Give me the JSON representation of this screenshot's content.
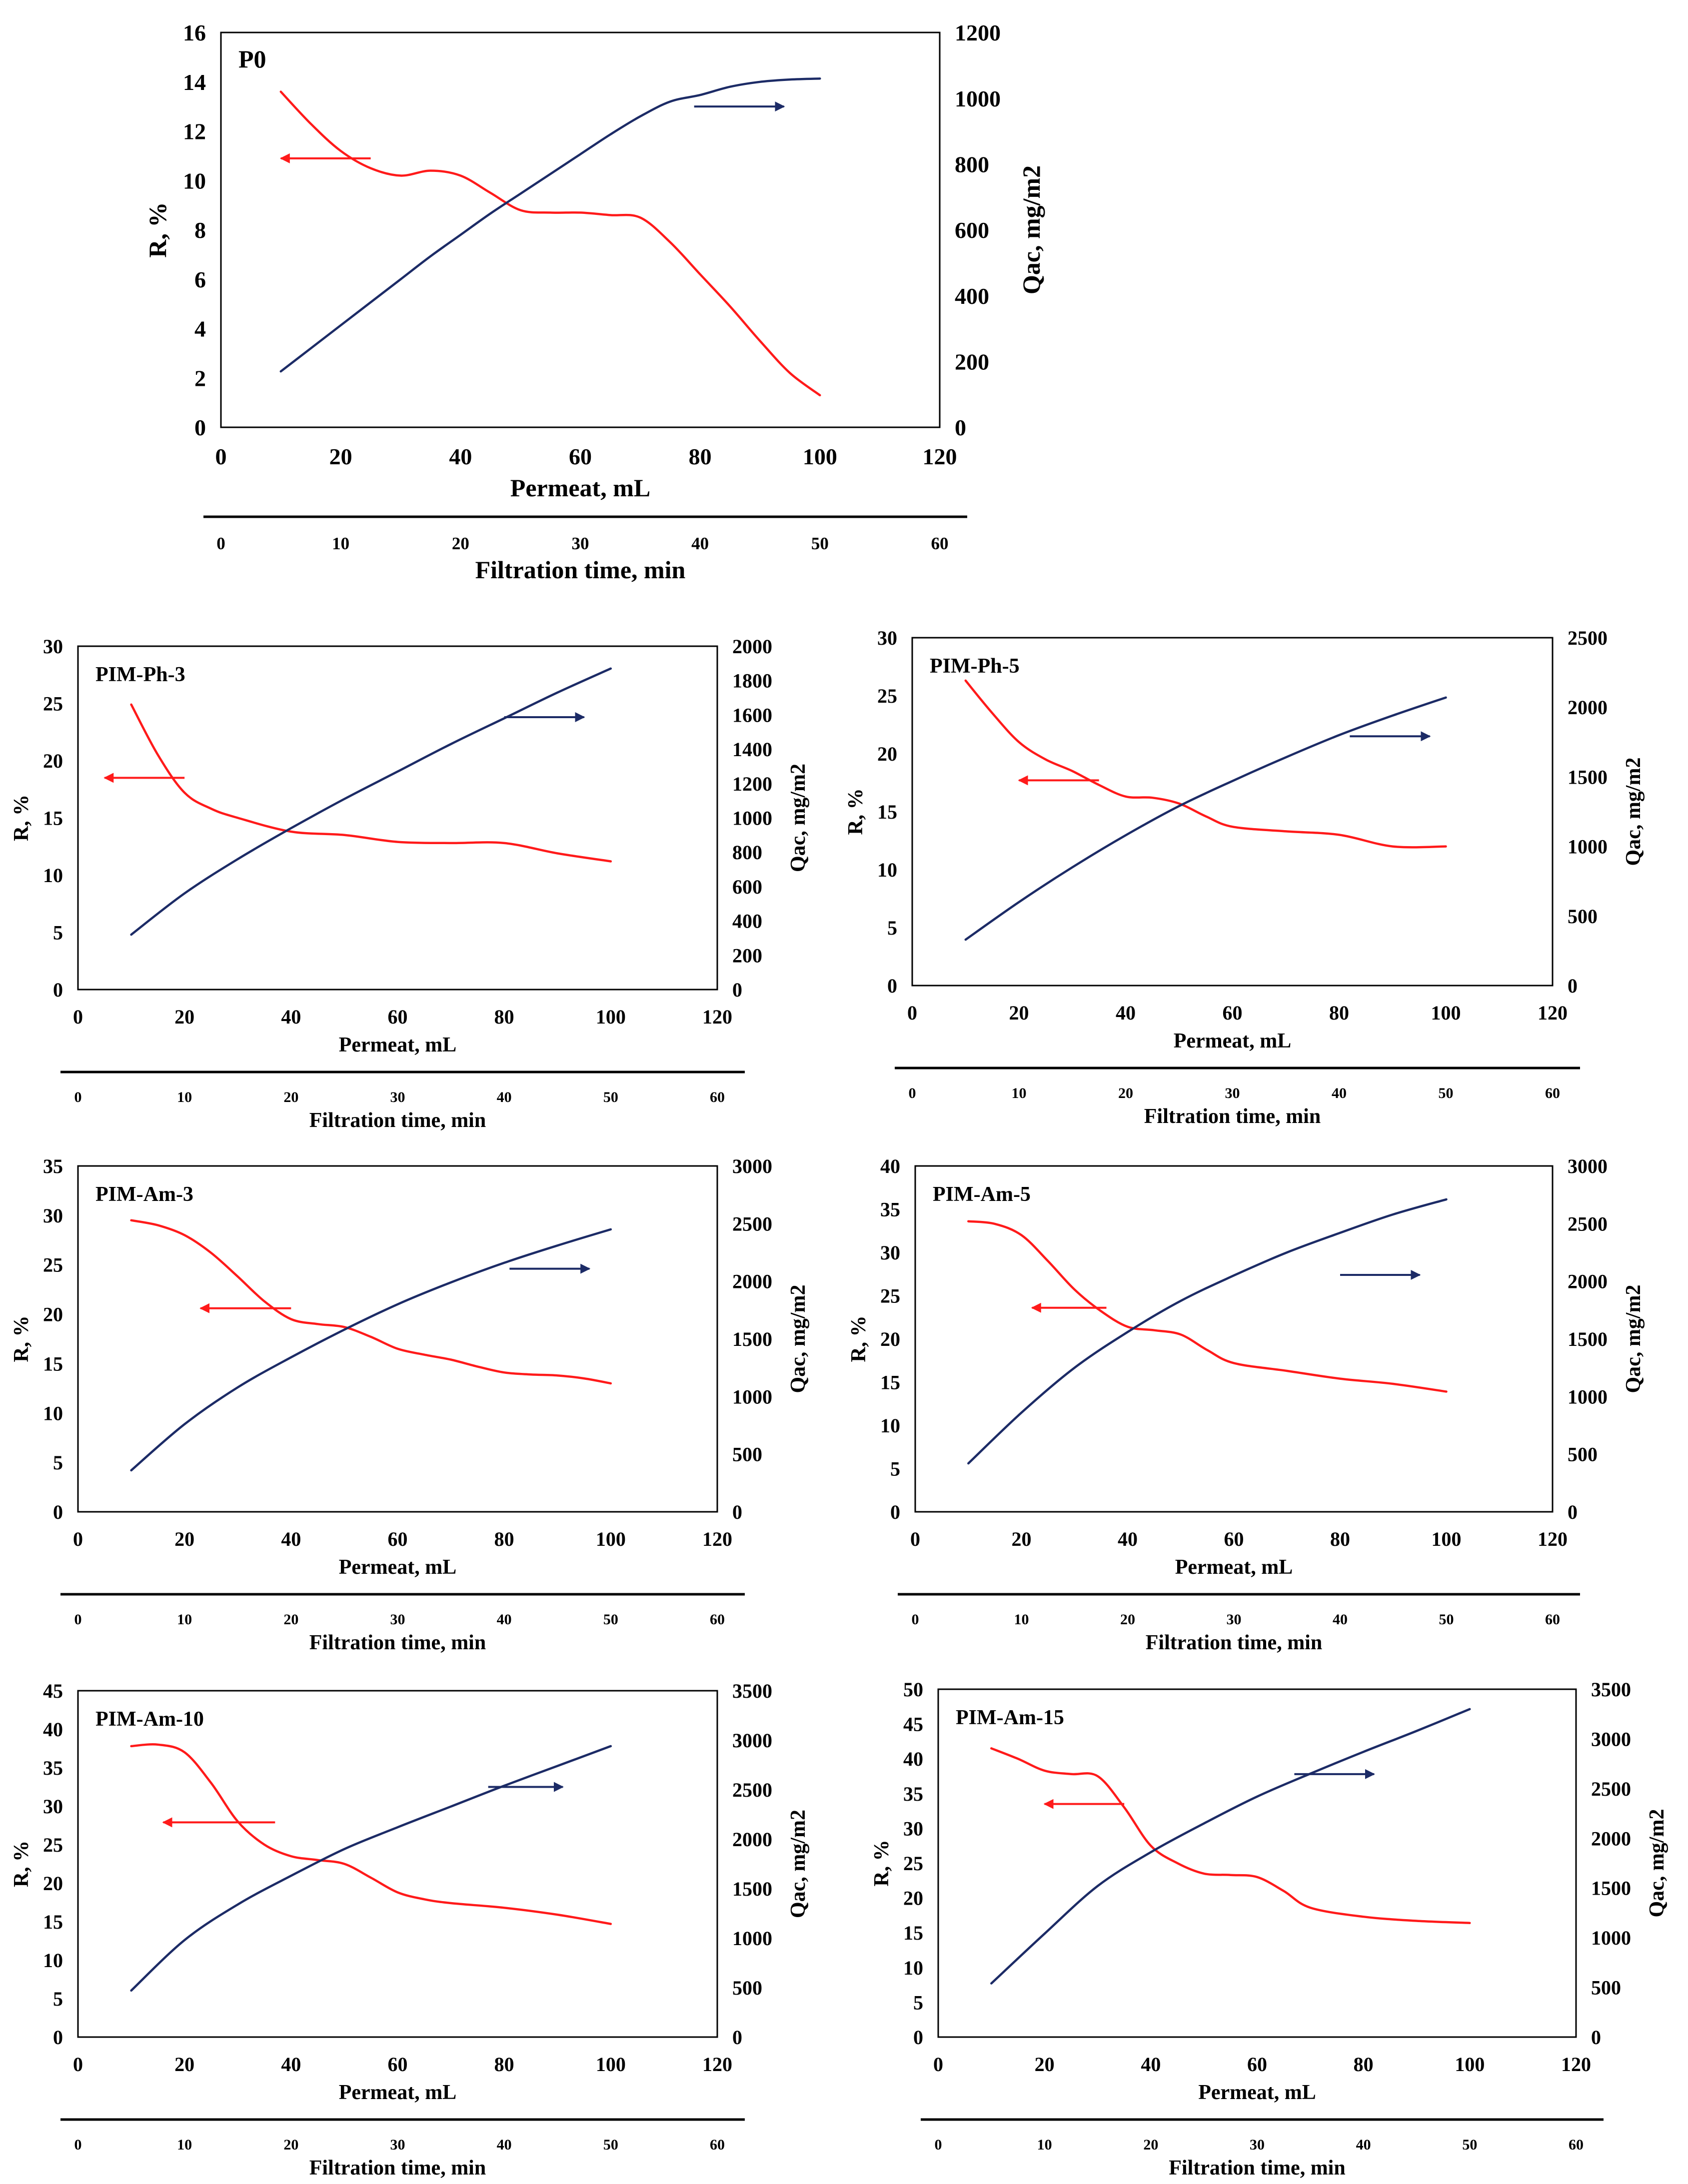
{
  "figure": {
    "colors": {
      "r_series": "#ff1a1a",
      "q_series": "#1c2b66",
      "frame": "#000000"
    }
  },
  "chart_data": [
    {
      "panel": "P0",
      "type": "line",
      "title": "P0",
      "xlabel": "Permeat, mL",
      "secondary_xlabel": "Filtration time, min",
      "ylabel": "R, %",
      "y2label": "Qac, mg/m2",
      "xlim": [
        0,
        120
      ],
      "xticks": [
        0,
        20,
        40,
        60,
        80,
        100,
        120
      ],
      "x2lim": [
        0,
        60
      ],
      "x2ticks": [
        0,
        10,
        20,
        30,
        40,
        50,
        60
      ],
      "ylim": [
        0,
        16
      ],
      "yticks": [
        0,
        2,
        4,
        6,
        8,
        10,
        12,
        14,
        16
      ],
      "y2lim": [
        0,
        1200
      ],
      "y2ticks": [
        0,
        200,
        400,
        600,
        800,
        1000,
        1200
      ],
      "grid": false,
      "series": [
        {
          "axis": "left",
          "x": [
            10,
            15,
            20,
            25,
            30,
            35,
            40,
            45,
            50,
            55,
            60,
            65,
            70,
            75,
            80,
            85,
            90,
            95,
            100
          ],
          "y": [
            13.6,
            12.3,
            11.2,
            10.5,
            10.2,
            10.4,
            10.2,
            9.5,
            8.8,
            8.7,
            8.7,
            8.6,
            8.5,
            7.5,
            6.2,
            4.9,
            3.5,
            2.2,
            1.3
          ]
        },
        {
          "axis": "right",
          "x": [
            10,
            15,
            20,
            25,
            30,
            35,
            40,
            45,
            50,
            55,
            60,
            65,
            70,
            75,
            80,
            85,
            90,
            95,
            100
          ],
          "y": [
            170,
            240,
            310,
            380,
            450,
            520,
            585,
            650,
            710,
            770,
            830,
            890,
            945,
            990,
            1010,
            1035,
            1050,
            1057,
            1060
          ]
        }
      ],
      "annotations": [
        {
          "kind": "arrow",
          "direction": "left",
          "from": [
            25,
            10.9
          ],
          "to": [
            10,
            10.9
          ]
        },
        {
          "kind": "arrow",
          "direction": "right",
          "from": [
            79,
            13.0
          ],
          "to": [
            94,
            13.0
          ]
        }
      ]
    },
    {
      "panel": "PIM-Ph-3",
      "type": "line",
      "title": "PIM-Ph-3",
      "xlabel": "Permeat, mL",
      "secondary_xlabel": "Filtration time, min",
      "ylabel": "R, %",
      "y2label": "Qac, mg/m2",
      "xlim": [
        0,
        120
      ],
      "xticks": [
        0,
        20,
        40,
        60,
        80,
        100,
        120
      ],
      "x2lim": [
        0,
        60
      ],
      "x2ticks": [
        0,
        10,
        20,
        30,
        40,
        50,
        60
      ],
      "ylim": [
        0,
        30
      ],
      "yticks": [
        0,
        5,
        10,
        15,
        20,
        25,
        30
      ],
      "y2lim": [
        0,
        2000
      ],
      "y2ticks": [
        0,
        200,
        400,
        600,
        800,
        1000,
        1200,
        1400,
        1600,
        1800,
        2000
      ],
      "grid": false,
      "series": [
        {
          "axis": "left",
          "x": [
            10,
            15,
            20,
            25,
            30,
            40,
            50,
            60,
            70,
            80,
            90,
            100
          ],
          "y": [
            24.9,
            20.5,
            17.2,
            15.8,
            15.0,
            13.8,
            13.5,
            12.9,
            12.8,
            12.8,
            11.9,
            11.2
          ]
        },
        {
          "axis": "right",
          "x": [
            10,
            20,
            30,
            40,
            50,
            60,
            70,
            80,
            90,
            100
          ],
          "y": [
            320,
            560,
            760,
            940,
            1110,
            1270,
            1430,
            1580,
            1730,
            1870
          ]
        }
      ],
      "annotations": [
        {
          "kind": "arrow",
          "direction": "left",
          "from": [
            20,
            18.5
          ],
          "to": [
            5,
            18.5
          ]
        },
        {
          "kind": "arrow",
          "direction": "right",
          "from": [
            80,
            23.8
          ],
          "to": [
            95,
            23.8
          ]
        }
      ]
    },
    {
      "panel": "PIM-Ph-5",
      "type": "line",
      "title": "PIM-Ph-5",
      "xlabel": "Permeat, mL",
      "secondary_xlabel": "Filtration time, min",
      "ylabel": "R, %",
      "y2label": "Qac, mg/m2",
      "xlim": [
        0,
        120
      ],
      "xticks": [
        0,
        20,
        40,
        60,
        80,
        100,
        120
      ],
      "x2lim": [
        0,
        60
      ],
      "x2ticks": [
        0,
        10,
        20,
        30,
        40,
        50,
        60
      ],
      "ylim": [
        0,
        30
      ],
      "yticks": [
        0,
        5,
        10,
        15,
        20,
        25,
        30
      ],
      "y2lim": [
        0,
        2500
      ],
      "y2ticks": [
        0,
        500,
        1000,
        1500,
        2000,
        2500
      ],
      "grid": false,
      "series": [
        {
          "axis": "left",
          "x": [
            10,
            15,
            20,
            25,
            30,
            35,
            40,
            45,
            50,
            55,
            60,
            70,
            80,
            90,
            100
          ],
          "y": [
            26.3,
            23.5,
            21.0,
            19.5,
            18.5,
            17.3,
            16.3,
            16.2,
            15.7,
            14.6,
            13.7,
            13.3,
            13.0,
            12.0,
            12.0
          ]
        },
        {
          "axis": "right",
          "x": [
            10,
            20,
            30,
            40,
            50,
            60,
            70,
            80,
            90,
            100
          ],
          "y": [
            330,
            600,
            850,
            1080,
            1290,
            1470,
            1640,
            1800,
            1940,
            2070
          ]
        }
      ],
      "annotations": [
        {
          "kind": "arrow",
          "direction": "left",
          "from": [
            35,
            17.7
          ],
          "to": [
            20,
            17.7
          ]
        },
        {
          "kind": "arrow",
          "direction": "right",
          "from": [
            82,
            21.5
          ],
          "to": [
            97,
            21.5
          ]
        }
      ]
    },
    {
      "panel": "PIM-Am-3",
      "type": "line",
      "title": "PIM-Am-3",
      "xlabel": "Permeat, mL",
      "secondary_xlabel": "Filtration time, min",
      "ylabel": "R, %",
      "y2label": "Qac, mg/m2",
      "xlim": [
        0,
        120
      ],
      "xticks": [
        0,
        20,
        40,
        60,
        80,
        100,
        120
      ],
      "x2lim": [
        0,
        60
      ],
      "x2ticks": [
        0,
        10,
        20,
        30,
        40,
        50,
        60
      ],
      "ylim": [
        0,
        35
      ],
      "yticks": [
        0,
        5,
        10,
        15,
        20,
        25,
        30,
        35
      ],
      "y2lim": [
        0,
        3000
      ],
      "y2ticks": [
        0,
        500,
        1000,
        1500,
        2000,
        2500,
        3000
      ],
      "grid": false,
      "series": [
        {
          "axis": "left",
          "x": [
            10,
            15,
            20,
            25,
            30,
            35,
            40,
            45,
            50,
            55,
            60,
            65,
            70,
            75,
            80,
            85,
            90,
            95,
            100
          ],
          "y": [
            29.5,
            29.0,
            28.0,
            26.2,
            23.8,
            21.3,
            19.5,
            19.0,
            18.7,
            17.7,
            16.5,
            15.9,
            15.4,
            14.7,
            14.1,
            13.9,
            13.8,
            13.5,
            13.0
          ]
        },
        {
          "axis": "right",
          "x": [
            10,
            20,
            30,
            40,
            50,
            60,
            70,
            80,
            90,
            100
          ],
          "y": [
            360,
            760,
            1080,
            1340,
            1580,
            1800,
            1990,
            2160,
            2310,
            2450
          ]
        }
      ],
      "annotations": [
        {
          "kind": "arrow",
          "direction": "left",
          "from": [
            40,
            20.6
          ],
          "to": [
            23,
            20.6
          ]
        },
        {
          "kind": "arrow",
          "direction": "right",
          "from": [
            81,
            24.6
          ],
          "to": [
            96,
            24.6
          ]
        }
      ]
    },
    {
      "panel": "PIM-Am-5",
      "type": "line",
      "title": "PIM-Am-5",
      "xlabel": "Permeat, mL",
      "secondary_xlabel": "Filtration time, min",
      "ylabel": "R, %",
      "y2label": "Qac, mg/m2",
      "xlim": [
        0,
        120
      ],
      "xticks": [
        0,
        20,
        40,
        60,
        80,
        100,
        120
      ],
      "x2lim": [
        0,
        60
      ],
      "x2ticks": [
        0,
        10,
        20,
        30,
        40,
        50,
        60
      ],
      "ylim": [
        0,
        40
      ],
      "yticks": [
        0,
        5,
        10,
        15,
        20,
        25,
        30,
        35,
        40
      ],
      "y2lim": [
        0,
        3000
      ],
      "y2ticks": [
        0,
        500,
        1000,
        1500,
        2000,
        2500,
        3000
      ],
      "grid": false,
      "series": [
        {
          "axis": "left",
          "x": [
            10,
            15,
            20,
            25,
            30,
            35,
            40,
            45,
            50,
            55,
            60,
            70,
            80,
            90,
            100
          ],
          "y": [
            33.6,
            33.3,
            32.0,
            29.0,
            25.7,
            23.2,
            21.4,
            21.0,
            20.5,
            18.7,
            17.2,
            16.3,
            15.4,
            14.8,
            13.9
          ]
        },
        {
          "axis": "right",
          "x": [
            10,
            20,
            30,
            40,
            50,
            60,
            70,
            80,
            90,
            100
          ],
          "y": [
            420,
            860,
            1250,
            1560,
            1830,
            2050,
            2250,
            2420,
            2580,
            2710
          ]
        }
      ],
      "annotations": [
        {
          "kind": "arrow",
          "direction": "left",
          "from": [
            36,
            23.6
          ],
          "to": [
            22,
            23.6
          ]
        },
        {
          "kind": "arrow",
          "direction": "right",
          "from": [
            80,
            27.4
          ],
          "to": [
            95,
            27.4
          ]
        }
      ]
    },
    {
      "panel": "PIM-Am-10",
      "type": "line",
      "title": "PIM-Am-10",
      "xlabel": "Permeat, mL",
      "secondary_xlabel": "Filtration time, min",
      "ylabel": "R, %",
      "y2label": "Qac, mg/m2",
      "xlim": [
        0,
        120
      ],
      "xticks": [
        0,
        20,
        40,
        60,
        80,
        100,
        120
      ],
      "x2lim": [
        0,
        60
      ],
      "x2ticks": [
        0,
        10,
        20,
        30,
        40,
        50,
        60
      ],
      "ylim": [
        0,
        45
      ],
      "yticks": [
        0,
        5,
        10,
        15,
        20,
        25,
        30,
        35,
        40,
        45
      ],
      "y2lim": [
        0,
        3500
      ],
      "y2ticks": [
        0,
        500,
        1000,
        1500,
        2000,
        2500,
        3000,
        3500
      ],
      "grid": false,
      "series": [
        {
          "axis": "left",
          "x": [
            10,
            15,
            20,
            25,
            30,
            35,
            40,
            45,
            50,
            55,
            60,
            65,
            70,
            80,
            90,
            100
          ],
          "y": [
            37.8,
            38.0,
            37.0,
            33.0,
            28.0,
            25.0,
            23.5,
            23.0,
            22.5,
            20.7,
            18.8,
            17.9,
            17.4,
            16.8,
            15.9,
            14.7
          ]
        },
        {
          "axis": "right",
          "x": [
            10,
            20,
            30,
            40,
            50,
            60,
            70,
            80,
            90,
            100
          ],
          "y": [
            470,
            980,
            1340,
            1630,
            1900,
            2120,
            2330,
            2540,
            2740,
            2940
          ]
        }
      ],
      "annotations": [
        {
          "kind": "arrow",
          "direction": "left",
          "from": [
            37,
            27.9
          ],
          "to": [
            16,
            27.9
          ]
        },
        {
          "kind": "arrow",
          "direction": "right",
          "from": [
            77,
            32.5
          ],
          "to": [
            91,
            32.5
          ]
        }
      ]
    },
    {
      "panel": "PIM-Am-15",
      "type": "line",
      "title": "PIM-Am-15",
      "xlabel": "Permeat, mL",
      "secondary_xlabel": "Filtration time, min",
      "ylabel": "R, %",
      "y2label": "Qac, mg/m2",
      "xlim": [
        0,
        120
      ],
      "xticks": [
        0,
        20,
        40,
        60,
        80,
        100,
        120
      ],
      "x2lim": [
        0,
        60
      ],
      "x2ticks": [
        0,
        10,
        20,
        30,
        40,
        50,
        60
      ],
      "ylim": [
        0,
        50
      ],
      "yticks": [
        0,
        5,
        10,
        15,
        20,
        25,
        30,
        35,
        40,
        45,
        50
      ],
      "y2lim": [
        0,
        3500
      ],
      "y2ticks": [
        0,
        500,
        1000,
        1500,
        2000,
        2500,
        3000,
        3500
      ],
      "grid": false,
      "series": [
        {
          "axis": "left",
          "x": [
            10,
            15,
            20,
            25,
            30,
            35,
            40,
            45,
            50,
            55,
            60,
            65,
            70,
            80,
            90,
            100
          ],
          "y": [
            41.5,
            40.0,
            38.3,
            37.8,
            37.5,
            33.0,
            27.5,
            25.0,
            23.5,
            23.3,
            23.0,
            21.0,
            18.6,
            17.3,
            16.7,
            16.4
          ]
        },
        {
          "axis": "right",
          "x": [
            10,
            20,
            30,
            40,
            50,
            60,
            70,
            80,
            90,
            100
          ],
          "y": [
            540,
            1040,
            1520,
            1860,
            2150,
            2420,
            2650,
            2870,
            3080,
            3300
          ]
        }
      ],
      "annotations": [
        {
          "kind": "arrow",
          "direction": "left",
          "from": [
            35,
            33.5
          ],
          "to": [
            20,
            33.5
          ]
        },
        {
          "kind": "arrow",
          "direction": "right",
          "from": [
            67,
            37.8
          ],
          "to": [
            82,
            37.8
          ]
        }
      ]
    }
  ]
}
